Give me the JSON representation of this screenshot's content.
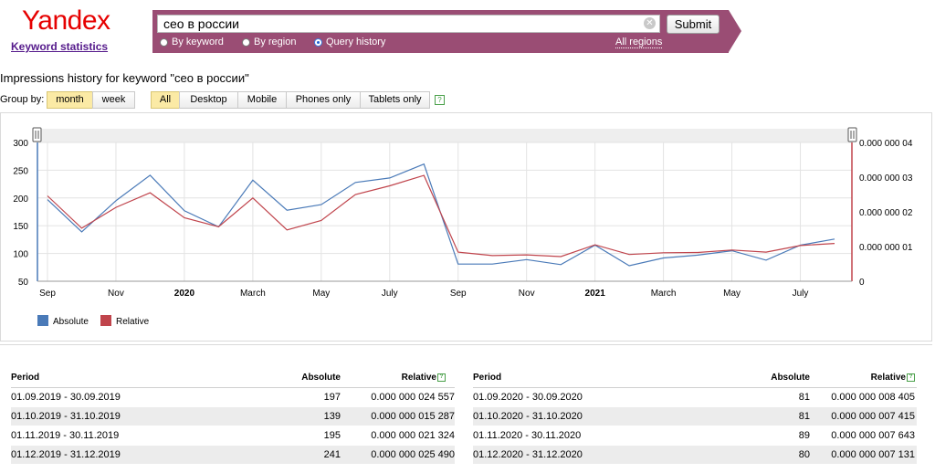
{
  "brand": {
    "logo": "Yandex",
    "subtitle": "Keyword statistics"
  },
  "search": {
    "query": "сео в россии",
    "submit_label": "Submit",
    "modes": [
      "By keyword",
      "By region",
      "Query history"
    ],
    "selected_mode": "Query history",
    "regions_label": "All regions"
  },
  "page": {
    "heading": "Impressions history for keyword \"сео в россии\"",
    "group_by_label": "Group by:",
    "group_options": [
      "month",
      "week"
    ],
    "group_selected": "month",
    "device_options": [
      "All",
      "Desktop",
      "Mobile",
      "Phones only",
      "Tablets only"
    ],
    "device_selected": "All",
    "help_glyph": "?"
  },
  "chart_data": {
    "type": "line",
    "x_tick_labels": [
      "Sep",
      "Nov",
      "2020",
      "March",
      "May",
      "July",
      "Sep",
      "Nov",
      "2021",
      "March",
      "May",
      "July"
    ],
    "y_left_ticks": [
      "300",
      "250",
      "200",
      "150",
      "100",
      "50"
    ],
    "y_right_ticks": [
      "0.000 000 04",
      "0.000 000 03",
      "0.000 000 02",
      "0.000 000 01",
      "0"
    ],
    "ylim_left": [
      50,
      300
    ],
    "ylim_right": [
      0,
      4e-08
    ],
    "grid": true,
    "legend_position": "bottom-left",
    "series": [
      {
        "name": "Absolute",
        "color": "#4a7ab8",
        "axis": "left",
        "values": [
          197,
          139,
          195,
          241,
          177,
          148,
          232,
          178,
          188,
          228,
          236,
          261,
          81,
          81,
          89,
          80,
          115,
          78,
          92,
          97,
          105,
          88,
          115,
          126
        ]
      },
      {
        "name": "Relative",
        "color": "#c0444c",
        "axis": "right",
        "values": [
          2.46e-08,
          1.53e-08,
          2.13e-08,
          2.55e-08,
          1.83e-08,
          1.57e-08,
          2.4e-08,
          1.48e-08,
          1.75e-08,
          2.5e-08,
          2.75e-08,
          3.05e-08,
          8.4e-09,
          7.4e-09,
          7.6e-09,
          7.1e-09,
          1.05e-08,
          7.7e-09,
          8.2e-09,
          8.3e-09,
          9e-09,
          8.4e-09,
          1.03e-08,
          1.09e-08
        ]
      }
    ]
  },
  "table": {
    "headers": {
      "period": "Period",
      "absolute": "Absolute",
      "relative": "Relative"
    },
    "left": [
      {
        "period": "01.09.2019 - 30.09.2019",
        "absolute": "197",
        "relative": "0.000 000 024 557"
      },
      {
        "period": "01.10.2019 - 31.10.2019",
        "absolute": "139",
        "relative": "0.000 000 015 287"
      },
      {
        "period": "01.11.2019 - 30.11.2019",
        "absolute": "195",
        "relative": "0.000 000 021 324"
      },
      {
        "period": "01.12.2019 - 31.12.2019",
        "absolute": "241",
        "relative": "0.000 000 025 490"
      }
    ],
    "right": [
      {
        "period": "01.09.2020 - 30.09.2020",
        "absolute": "81",
        "relative": "0.000 000 008 405"
      },
      {
        "period": "01.10.2020 - 31.10.2020",
        "absolute": "81",
        "relative": "0.000 000 007 415"
      },
      {
        "period": "01.11.2020 - 30.11.2020",
        "absolute": "89",
        "relative": "0.000 000 007 643"
      },
      {
        "period": "01.12.2020 - 31.12.2020",
        "absolute": "80",
        "relative": "0.000 000 007 131"
      }
    ]
  }
}
